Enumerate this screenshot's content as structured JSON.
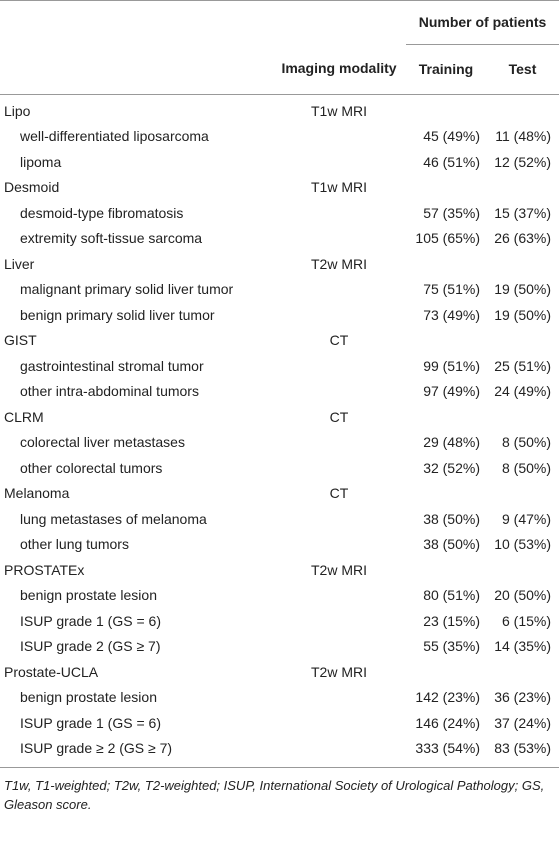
{
  "header": {
    "number_of_patients": "Number of patients",
    "imaging_modality": "Imaging modality",
    "training": "Training",
    "test": "Test"
  },
  "groups": [
    {
      "name": "Lipo",
      "modality": "T1w MRI",
      "rows": [
        [
          "well-differentiated liposarcoma",
          "45 (49%)",
          "11 (48%)"
        ],
        [
          "lipoma",
          "46 (51%)",
          "12 (52%)"
        ]
      ]
    },
    {
      "name": "Desmoid",
      "modality": "T1w MRI",
      "rows": [
        [
          "desmoid-type fibromatosis",
          "57 (35%)",
          "15 (37%)"
        ],
        [
          "extremity soft-tissue sarcoma",
          "105 (65%)",
          "26 (63%)"
        ]
      ]
    },
    {
      "name": "Liver",
      "modality": "T2w MRI",
      "rows": [
        [
          "malignant primary solid liver tumor",
          "75 (51%)",
          "19 (50%)"
        ],
        [
          "benign primary solid liver tumor",
          "73 (49%)",
          "19 (50%)"
        ]
      ]
    },
    {
      "name": "GIST",
      "modality": "CT",
      "rows": [
        [
          "gastrointestinal stromal tumor",
          "99 (51%)",
          "25 (51%)"
        ],
        [
          "other intra-abdominal tumors",
          "97 (49%)",
          "24 (49%)"
        ]
      ]
    },
    {
      "name": "CLRM",
      "modality": "CT",
      "rows": [
        [
          "colorectal liver metastases",
          "29 (48%)",
          "8 (50%)"
        ],
        [
          "other colorectal tumors",
          "32 (52%)",
          "8 (50%)"
        ]
      ]
    },
    {
      "name": "Melanoma",
      "modality": "CT",
      "rows": [
        [
          "lung metastases of melanoma",
          "38 (50%)",
          "9 (47%)"
        ],
        [
          "other lung tumors",
          "38 (50%)",
          "10 (53%)"
        ]
      ]
    },
    {
      "name": "PROSTATEx",
      "modality": "T2w MRI",
      "rows": [
        [
          "benign prostate lesion",
          "80 (51%)",
          "20 (50%)"
        ],
        [
          "ISUP grade 1 (GS = 6)",
          "23 (15%)",
          "6 (15%)"
        ],
        [
          "ISUP grade 2 (GS ≥ 7)",
          "55 (35%)",
          "14 (35%)"
        ]
      ]
    },
    {
      "name": "Prostate-UCLA",
      "modality": "T2w MRI",
      "rows": [
        [
          "benign prostate lesion",
          "142 (23%)",
          "36 (23%)"
        ],
        [
          "ISUP grade 1 (GS = 6)",
          "146 (24%)",
          "37 (24%)"
        ],
        [
          "ISUP grade ≥ 2 (GS ≥ 7)",
          "333 (54%)",
          "83 (53%)"
        ]
      ]
    }
  ],
  "footnote": "T1w, T1-weighted; T2w, T2-weighted; ISUP, International Society of Urological Pathology; GS, Gleason score."
}
